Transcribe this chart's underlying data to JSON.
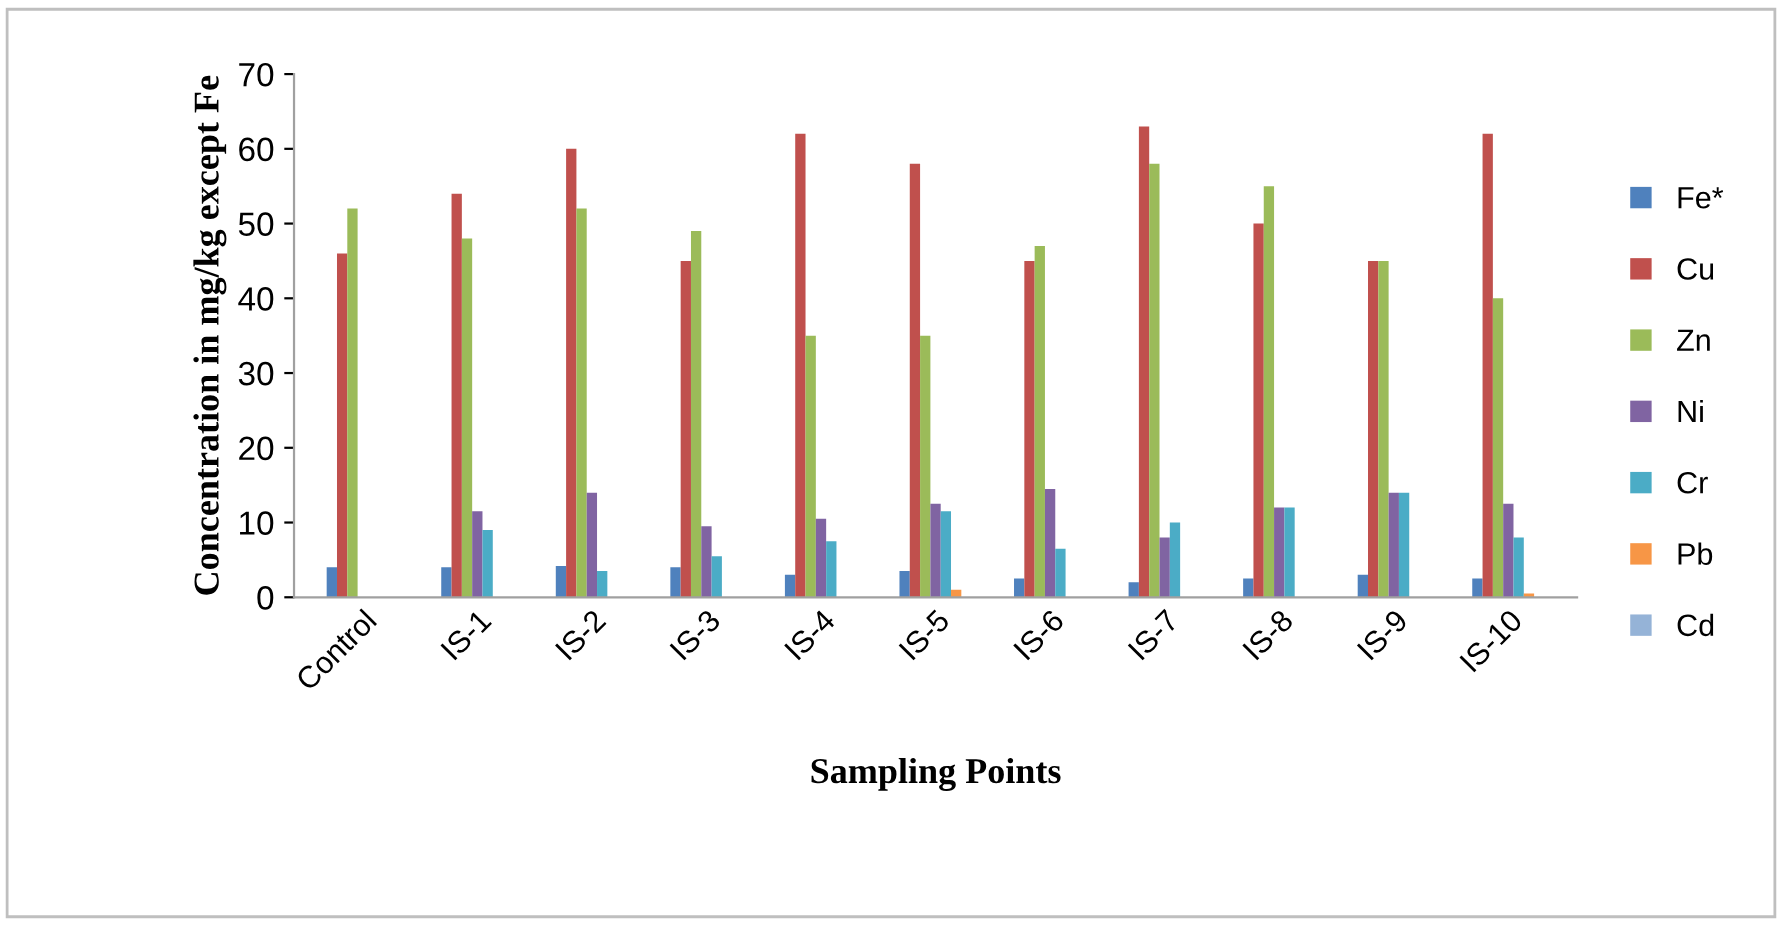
{
  "chart_data": {
    "type": "bar",
    "xlabel": "Sampling Points",
    "ylabel": "Concentration in mg/kg except Fe",
    "categories": [
      "Control",
      "IS-1",
      "IS-2",
      "IS-3",
      "IS-4",
      "IS-5",
      "IS-6",
      "IS-7",
      "IS-8",
      "IS-9",
      "IS-10"
    ],
    "series": [
      {
        "name": "Fe*",
        "color": "#4f81bd",
        "values": [
          4,
          4,
          4.2,
          4,
          3,
          3.5,
          2.5,
          2,
          2.5,
          3,
          2.5
        ]
      },
      {
        "name": "Cu",
        "color": "#c0504d",
        "values": [
          46,
          54,
          60,
          45,
          62,
          58,
          45,
          63,
          50,
          45,
          62
        ]
      },
      {
        "name": "Zn",
        "color": "#9bbb59",
        "values": [
          52,
          48,
          52,
          49,
          35,
          35,
          47,
          58,
          55,
          45,
          40
        ]
      },
      {
        "name": "Ni",
        "color": "#8064a2",
        "values": [
          0,
          11.5,
          14,
          9.5,
          10.5,
          12.5,
          14.5,
          8,
          12,
          14,
          12.5
        ]
      },
      {
        "name": "Cr",
        "color": "#4bacc6",
        "values": [
          0,
          9,
          3.5,
          5.5,
          7.5,
          11.5,
          6.5,
          10,
          12,
          14,
          8
        ]
      },
      {
        "name": "Pb",
        "color": "#f79646",
        "values": [
          0,
          0,
          0,
          0,
          0,
          1,
          0,
          0,
          0,
          0,
          0.5
        ]
      },
      {
        "name": "Cd",
        "color": "#95b3d7",
        "values": [
          0,
          0,
          0,
          0,
          0,
          0,
          0,
          0,
          0,
          0,
          0
        ]
      }
    ],
    "ylim": [
      0,
      70
    ],
    "yticks": [
      0,
      10,
      20,
      30,
      40,
      50,
      60,
      70
    ],
    "grid": false,
    "legend": "right"
  }
}
